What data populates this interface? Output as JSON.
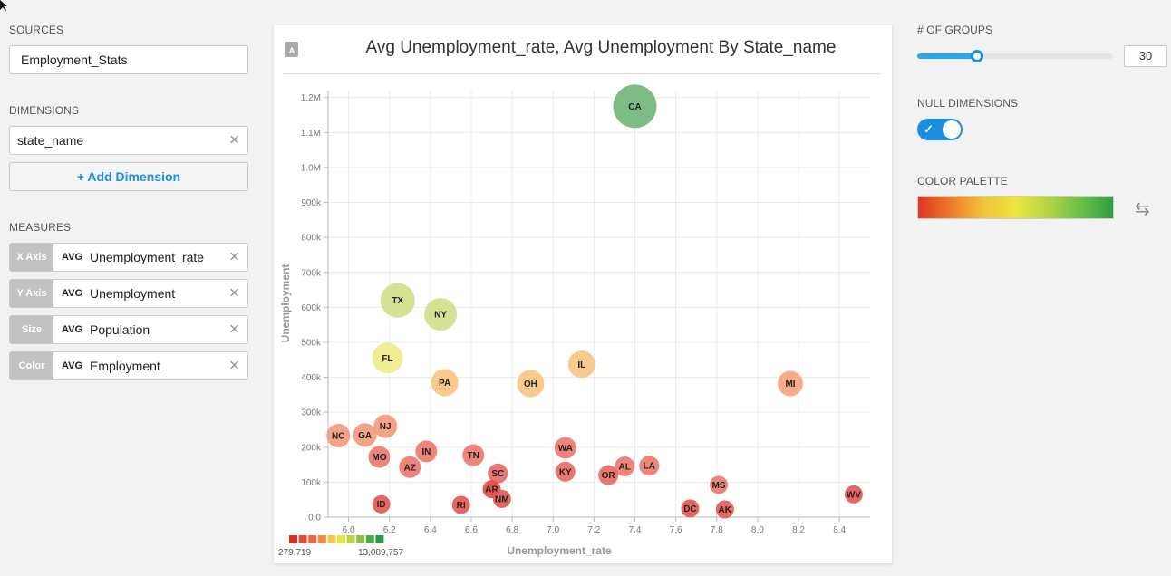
{
  "sidebar": {
    "sources_label": "SOURCES",
    "source_value": "Employment_Stats",
    "dimensions_label": "DIMENSIONS",
    "dimension_value": "state_name",
    "add_dimension_label": "+ Add Dimension",
    "measures_label": "MEASURES",
    "remove_glyph": "✕",
    "measures": [
      {
        "tag": "X Axis",
        "agg": "AVG",
        "field": "Unemployment_rate"
      },
      {
        "tag": "Y Axis",
        "agg": "AVG",
        "field": "Unemployment"
      },
      {
        "tag": "Size",
        "agg": "AVG",
        "field": "Population"
      },
      {
        "tag": "Color",
        "agg": "AVG",
        "field": "Employment"
      }
    ]
  },
  "settings": {
    "groups_label": "# OF GROUPS",
    "groups_value": "30",
    "groups_slider_fraction": 0.305,
    "null_dimensions_label": "NULL DIMENSIONS",
    "null_dimensions_on": true,
    "color_palette_label": "COLOR PALETTE",
    "palette_colors": [
      "#e03524",
      "#ee7a2a",
      "#f2c33a",
      "#ece540",
      "#b4d544",
      "#6cbf49",
      "#2f9e44"
    ]
  },
  "panel": {
    "icon": "A"
  },
  "chart_data": {
    "type": "scatter",
    "title": "Avg Unemployment_rate, Avg Unemployment By State_name",
    "xlabel": "Unemployment_rate",
    "ylabel": "Unemployment",
    "xlim": [
      5.9,
      8.55
    ],
    "ylim": [
      0,
      1220000
    ],
    "x_ticks": [
      "6.0",
      "6.2",
      "6.4",
      "6.6",
      "6.8",
      "7.0",
      "7.2",
      "7.4",
      "7.6",
      "7.8",
      "8.0",
      "8.2",
      "8.4"
    ],
    "y_ticks": [
      {
        "v": 0,
        "label": "0.0"
      },
      {
        "v": 100000,
        "label": "100k"
      },
      {
        "v": 200000,
        "label": "200k"
      },
      {
        "v": 300000,
        "label": "300k"
      },
      {
        "v": 400000,
        "label": "400k"
      },
      {
        "v": 500000,
        "label": "500k"
      },
      {
        "v": 600000,
        "label": "600k"
      },
      {
        "v": 700000,
        "label": "700k"
      },
      {
        "v": 800000,
        "label": "800k"
      },
      {
        "v": 900000,
        "label": "900k"
      },
      {
        "v": 1000000,
        "label": "1.0M"
      },
      {
        "v": 1100000,
        "label": "1.1M"
      },
      {
        "v": 1200000,
        "label": "1.2M"
      }
    ],
    "grid": true,
    "legend": {
      "placement": "bottom-left",
      "min_label": "279,719",
      "max_label": "13,089,757"
    },
    "points": [
      {
        "label": "CA",
        "x": 7.4,
        "y": 1175000,
        "r": 24,
        "color": "#73b67c"
      },
      {
        "label": "TX",
        "x": 6.24,
        "y": 620000,
        "r": 19,
        "color": "#cfe08a"
      },
      {
        "label": "NY",
        "x": 6.45,
        "y": 580000,
        "r": 18,
        "color": "#cfe08a"
      },
      {
        "label": "FL",
        "x": 6.19,
        "y": 455000,
        "r": 17,
        "color": "#f0ec8c"
      },
      {
        "label": "PA",
        "x": 6.47,
        "y": 385000,
        "r": 15,
        "color": "#f9c584"
      },
      {
        "label": "OH",
        "x": 6.89,
        "y": 382000,
        "r": 15,
        "color": "#f9c584"
      },
      {
        "label": "IL",
        "x": 7.14,
        "y": 437000,
        "r": 15,
        "color": "#f9c584"
      },
      {
        "label": "MI",
        "x": 8.16,
        "y": 382000,
        "r": 14,
        "color": "#f6a57e"
      },
      {
        "label": "NC",
        "x": 5.95,
        "y": 233000,
        "r": 13,
        "color": "#f49b7c"
      },
      {
        "label": "GA",
        "x": 6.08,
        "y": 235000,
        "r": 13,
        "color": "#f49b7c"
      },
      {
        "label": "NJ",
        "x": 6.18,
        "y": 260000,
        "r": 13,
        "color": "#f49b7c"
      },
      {
        "label": "MO",
        "x": 6.15,
        "y": 172000,
        "r": 12,
        "color": "#ee7a70"
      },
      {
        "label": "IN",
        "x": 6.38,
        "y": 188000,
        "r": 12,
        "color": "#ee7a70"
      },
      {
        "label": "AZ",
        "x": 6.3,
        "y": 143000,
        "r": 12,
        "color": "#ee7a70"
      },
      {
        "label": "TN",
        "x": 6.61,
        "y": 177000,
        "r": 12,
        "color": "#ee7a70"
      },
      {
        "label": "WA",
        "x": 7.06,
        "y": 198000,
        "r": 12,
        "color": "#ee7a70"
      },
      {
        "label": "SC",
        "x": 6.73,
        "y": 125000,
        "r": 11,
        "color": "#e96b66"
      },
      {
        "label": "KY",
        "x": 7.06,
        "y": 130000,
        "r": 11,
        "color": "#e96b66"
      },
      {
        "label": "AL",
        "x": 7.35,
        "y": 145000,
        "r": 11,
        "color": "#ee7a70"
      },
      {
        "label": "LA",
        "x": 7.47,
        "y": 147000,
        "r": 11,
        "color": "#ee7a70"
      },
      {
        "label": "OR",
        "x": 7.27,
        "y": 120000,
        "r": 11,
        "color": "#e96b66"
      },
      {
        "label": "AR",
        "x": 6.7,
        "y": 80000,
        "r": 10,
        "color": "#e24a44"
      },
      {
        "label": "NM",
        "x": 6.75,
        "y": 52000,
        "r": 10,
        "color": "#e45a55"
      },
      {
        "label": "ID",
        "x": 6.16,
        "y": 37000,
        "r": 10,
        "color": "#e45a55"
      },
      {
        "label": "RI",
        "x": 6.55,
        "y": 35000,
        "r": 10,
        "color": "#e45a55"
      },
      {
        "label": "MS",
        "x": 7.81,
        "y": 92000,
        "r": 10,
        "color": "#ee7a70"
      },
      {
        "label": "DC",
        "x": 7.67,
        "y": 25000,
        "r": 10,
        "color": "#e45a55"
      },
      {
        "label": "AK",
        "x": 7.84,
        "y": 22000,
        "r": 10,
        "color": "#e45a55"
      },
      {
        "label": "WV",
        "x": 8.47,
        "y": 65000,
        "r": 10,
        "color": "#e45a55"
      }
    ]
  }
}
